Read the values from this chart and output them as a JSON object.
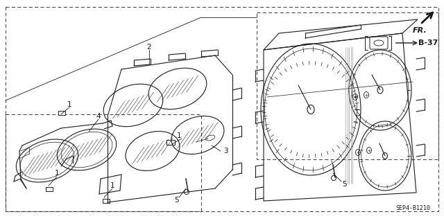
{
  "bg_color": "#ffffff",
  "line_color": "#1a1a1a",
  "fig_width": 6.4,
  "fig_height": 3.19,
  "dpi": 100,
  "part_label": "SEP4-B1210",
  "ref_label": "B-37",
  "fr_label": "FR."
}
